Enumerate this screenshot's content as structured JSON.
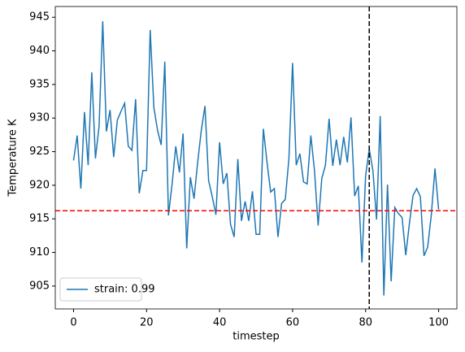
{
  "chart_data": {
    "type": "line",
    "xlabel": "timestep",
    "ylabel": "Temperature K",
    "x": [
      0,
      1,
      2,
      3,
      4,
      5,
      6,
      7,
      8,
      9,
      10,
      11,
      12,
      13,
      14,
      15,
      16,
      17,
      18,
      19,
      20,
      21,
      22,
      23,
      24,
      25,
      26,
      27,
      28,
      29,
      30,
      31,
      32,
      33,
      34,
      35,
      36,
      37,
      38,
      39,
      40,
      41,
      42,
      43,
      44,
      45,
      46,
      47,
      48,
      49,
      50,
      51,
      52,
      53,
      54,
      55,
      56,
      57,
      58,
      59,
      60,
      61,
      62,
      63,
      64,
      65,
      66,
      67,
      68,
      69,
      70,
      71,
      72,
      73,
      74,
      75,
      76,
      77,
      78,
      79,
      80,
      81,
      82,
      83,
      84,
      85,
      86,
      87,
      88,
      89,
      90,
      91,
      92,
      93,
      94,
      95,
      96,
      97,
      98,
      99,
      100
    ],
    "series": [
      {
        "name": "strain: 0.99",
        "color": "#1f77b4",
        "values": [
          923.7,
          927.4,
          919.5,
          930.9,
          923.0,
          936.8,
          924.0,
          928.8,
          944.4,
          928.0,
          931.2,
          924.2,
          929.7,
          931.0,
          932.2,
          925.8,
          925.2,
          932.8,
          918.8,
          922.2,
          922.2,
          943.1,
          931.6,
          928.2,
          926.0,
          938.4,
          915.5,
          920.2,
          925.8,
          921.9,
          927.7,
          910.6,
          921.2,
          918.0,
          923.4,
          928.2,
          931.8,
          920.7,
          918.3,
          915.6,
          926.4,
          920.2,
          921.8,
          914.2,
          912.3,
          923.9,
          914.7,
          917.6,
          914.7,
          919.1,
          912.7,
          912.7,
          928.4,
          923.4,
          919.0,
          919.5,
          912.3,
          917.3,
          917.9,
          924.0,
          938.2,
          923.0,
          924.7,
          920.5,
          920.2,
          927.4,
          922.2,
          914.0,
          921.0,
          923.0,
          929.9,
          922.9,
          926.8,
          923.0,
          927.2,
          923.4,
          930.1,
          918.4,
          919.9,
          908.5,
          921.4,
          925.4,
          922.2,
          914.9,
          930.3,
          903.6,
          920.1,
          905.7,
          916.7,
          915.8,
          915.2,
          909.6,
          914.3,
          918.5,
          919.5,
          918.3,
          909.5,
          910.8,
          915.6,
          922.5,
          916.4
        ]
      }
    ],
    "hlines": [
      {
        "value": 916.2,
        "color": "#ff0000"
      }
    ],
    "vlines": [
      {
        "value": 81,
        "color": "#000000"
      }
    ],
    "xlim": [
      -5,
      105
    ],
    "xticks": [
      0,
      20,
      40,
      60,
      80,
      100
    ],
    "ylim": [
      901.6,
      946.6
    ],
    "yticks": [
      905,
      910,
      915,
      920,
      925,
      930,
      935,
      940,
      945
    ],
    "legend": "lower left"
  }
}
